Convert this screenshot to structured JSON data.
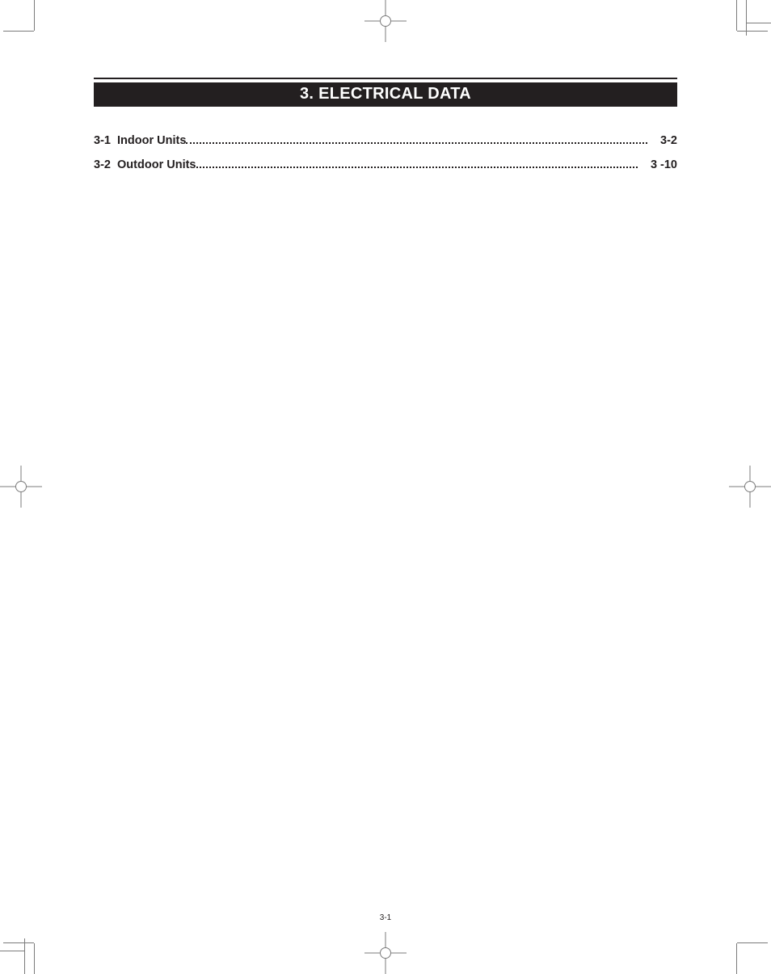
{
  "colors": {
    "ink": "#231f20",
    "mark": "#7b7b7b",
    "paper": "#ffffff"
  },
  "title": "3. ELECTRICAL DATA",
  "title_fontsize_pt": 15,
  "toc": {
    "label_fontsize_pt": 11,
    "entries": [
      {
        "num": "3-1",
        "label": "Indoor Units",
        "page": "3-2"
      },
      {
        "num": "3-2",
        "label": "Outdoor Units",
        "page": "3 -10"
      }
    ]
  },
  "page_number": "3-1",
  "page_number_fontsize_pt": 8,
  "crop_marks": true,
  "registration_targets": true
}
